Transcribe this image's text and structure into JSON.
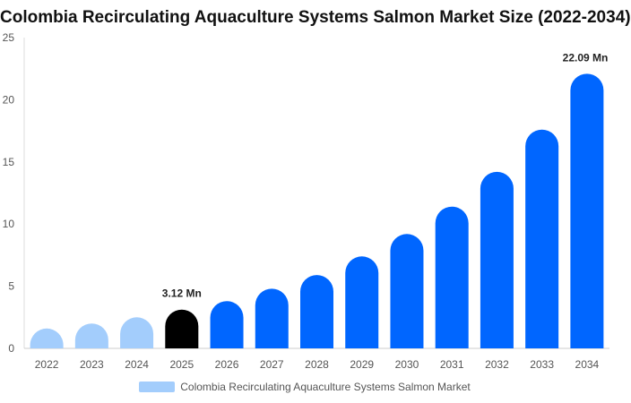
{
  "chart_data": {
    "type": "bar",
    "title": "Colombia Recirculating Aquaculture Systems Salmon Market Size (2022-2034)",
    "xlabel": "",
    "ylabel": "",
    "categories": [
      "2022",
      "2023",
      "2024",
      "2025",
      "2026",
      "2027",
      "2028",
      "2029",
      "2030",
      "2031",
      "2032",
      "2033",
      "2034"
    ],
    "series": [
      {
        "name": "Colombia Recirculating Aquaculture Systems Salmon Market",
        "values": [
          1.6,
          2.0,
          2.5,
          3.12,
          3.8,
          4.8,
          5.9,
          7.4,
          9.2,
          11.4,
          14.2,
          17.6,
          22.09
        ]
      }
    ],
    "ylim": [
      0,
      25
    ],
    "yticks": [
      0,
      5,
      10,
      15,
      20,
      25
    ],
    "grid": false,
    "legend_position": "bottom",
    "annotations": [
      {
        "category": "2025",
        "text": "3.12 Mn"
      },
      {
        "category": "2034",
        "text": "22.09 Mn"
      }
    ],
    "colors": {
      "historical": "#a3cdfc",
      "current": "#000000",
      "forecast": "#0066ff"
    },
    "historical_count": 3,
    "current_index": 3
  }
}
